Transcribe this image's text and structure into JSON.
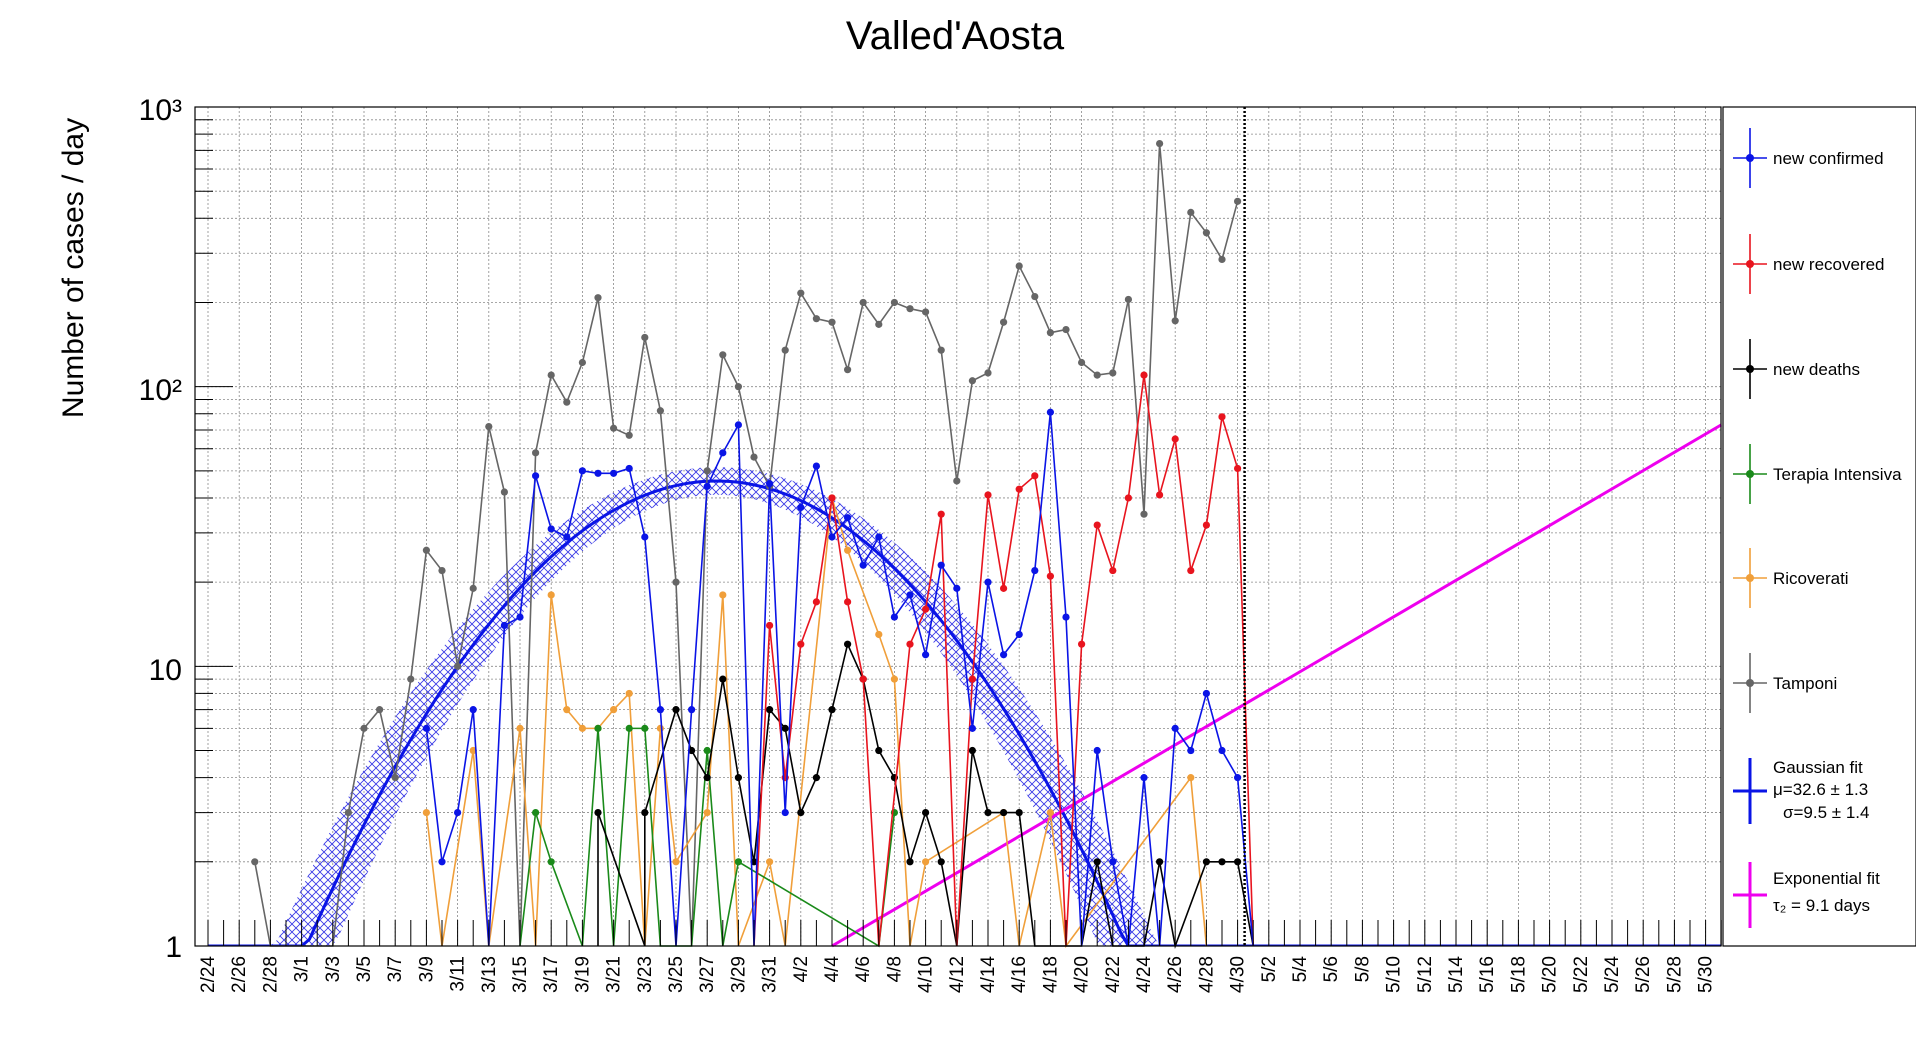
{
  "chart_data": {
    "type": "line",
    "title": "Valled'Aosta",
    "ylabel": "Number of cases / day",
    "xlabel": "",
    "yscale": "log",
    "ylim": [
      1,
      1000
    ],
    "grid": true,
    "legend_position": "right",
    "y_ticks": [
      "1",
      "10",
      "10²",
      "10³"
    ],
    "x_dates": [
      "2/24",
      "2/25",
      "2/26",
      "2/27",
      "2/28",
      "2/29",
      "3/1",
      "3/2",
      "3/3",
      "3/4",
      "3/5",
      "3/6",
      "3/7",
      "3/8",
      "3/9",
      "3/10",
      "3/11",
      "3/12",
      "3/13",
      "3/14",
      "3/15",
      "3/16",
      "3/17",
      "3/18",
      "3/19",
      "3/20",
      "3/21",
      "3/22",
      "3/23",
      "3/24",
      "3/25",
      "3/26",
      "3/27",
      "3/28",
      "3/29",
      "3/30",
      "3/31",
      "4/1",
      "4/2",
      "4/3",
      "4/4",
      "4/5",
      "4/6",
      "4/7",
      "4/8",
      "4/9",
      "4/10",
      "4/11",
      "4/12",
      "4/13",
      "4/14",
      "4/15",
      "4/16",
      "4/17",
      "4/18",
      "4/19",
      "4/20",
      "4/21",
      "4/22",
      "4/23",
      "4/24",
      "4/25",
      "4/26",
      "4/27",
      "4/28",
      "4/29",
      "4/30",
      "5/1",
      "5/2",
      "5/3",
      "5/4",
      "5/5",
      "5/6",
      "5/7",
      "5/8",
      "5/9",
      "5/10",
      "5/11",
      "5/12",
      "5/13",
      "5/14",
      "5/15",
      "5/16",
      "5/17",
      "5/18",
      "5/19",
      "5/20",
      "5/21",
      "5/22",
      "5/23",
      "5/24",
      "5/25",
      "5/26",
      "5/27",
      "5/28",
      "5/29",
      "5/30",
      "5/31"
    ],
    "x_tick_labels": [
      "2/24",
      "2/26",
      "2/28",
      "3/1",
      "3/3",
      "3/5",
      "3/7",
      "3/9",
      "3/11",
      "3/13",
      "3/15",
      "3/17",
      "3/19",
      "3/21",
      "3/23",
      "3/25",
      "3/27",
      "3/29",
      "3/31",
      "4/2",
      "4/4",
      "4/6",
      "4/8",
      "4/10",
      "4/12",
      "4/14",
      "4/16",
      "4/18",
      "4/20",
      "4/22",
      "4/24",
      "4/26",
      "4/28",
      "4/30",
      "5/2",
      "5/4",
      "5/6",
      "5/8",
      "5/10",
      "5/12",
      "5/14",
      "5/16",
      "5/18",
      "5/20",
      "5/22",
      "5/24",
      "5/26",
      "5/28",
      "5/30"
    ],
    "vertical_line_date": "4/30",
    "series": [
      {
        "name": "Tamponi",
        "color": "#666666",
        "points": [
          [
            "2/27",
            2
          ],
          [
            "2/28",
            1
          ],
          [
            "3/3",
            1
          ],
          [
            "3/4",
            3
          ],
          [
            "3/5",
            6
          ],
          [
            "3/6",
            7
          ],
          [
            "3/7",
            4
          ],
          [
            "3/8",
            9
          ],
          [
            "3/9",
            26
          ],
          [
            "3/10",
            22
          ],
          [
            "3/11",
            10
          ],
          [
            "3/12",
            19
          ],
          [
            "3/13",
            72
          ],
          [
            "3/14",
            42
          ],
          [
            "3/15",
            1
          ],
          [
            "3/16",
            58
          ],
          [
            "3/17",
            110
          ],
          [
            "3/18",
            88
          ],
          [
            "3/19",
            122
          ],
          [
            "3/20",
            208
          ],
          [
            "3/21",
            71
          ],
          [
            "3/22",
            67
          ],
          [
            "3/23",
            150
          ],
          [
            "3/24",
            82
          ],
          [
            "3/25",
            20
          ],
          [
            "3/26",
            1
          ],
          [
            "3/27",
            50
          ],
          [
            "3/28",
            130
          ],
          [
            "3/29",
            100
          ],
          [
            "3/30",
            56
          ],
          [
            "3/31",
            44
          ],
          [
            "4/1",
            135
          ],
          [
            "4/2",
            216
          ],
          [
            "4/3",
            175
          ],
          [
            "4/4",
            170
          ],
          [
            "4/5",
            115
          ],
          [
            "4/6",
            200
          ],
          [
            "4/7",
            167
          ],
          [
            "4/8",
            200
          ],
          [
            "4/9",
            190
          ],
          [
            "4/10",
            185
          ],
          [
            "4/11",
            135
          ],
          [
            "4/12",
            46
          ],
          [
            "4/13",
            105
          ],
          [
            "4/14",
            112
          ],
          [
            "4/15",
            170
          ],
          [
            "4/16",
            270
          ],
          [
            "4/17",
            210
          ],
          [
            "4/18",
            156
          ],
          [
            "4/19",
            160
          ],
          [
            "4/20",
            122
          ],
          [
            "4/21",
            110
          ],
          [
            "4/22",
            112
          ],
          [
            "4/23",
            205
          ],
          [
            "4/24",
            35
          ],
          [
            "4/25",
            740
          ],
          [
            "4/26",
            172
          ],
          [
            "4/27",
            420
          ],
          [
            "4/28",
            355
          ],
          [
            "4/29",
            285
          ],
          [
            "4/30",
            460
          ]
        ]
      },
      {
        "name": "Ricoverati",
        "color": "#f09f3a",
        "points": [
          [
            "3/9",
            3
          ],
          [
            "3/10",
            1
          ],
          [
            "3/12",
            5
          ],
          [
            "3/13",
            1
          ],
          [
            "3/15",
            6
          ],
          [
            "3/16",
            1
          ],
          [
            "3/17",
            18
          ],
          [
            "3/18",
            7
          ],
          [
            "3/19",
            6
          ],
          [
            "3/20",
            6
          ],
          [
            "3/21",
            7
          ],
          [
            "3/22",
            8
          ],
          [
            "3/23",
            1
          ],
          [
            "3/24",
            6
          ],
          [
            "3/25",
            2
          ],
          [
            "3/27",
            3
          ],
          [
            "3/28",
            18
          ],
          [
            "3/29",
            1
          ],
          [
            "3/31",
            2
          ],
          [
            "4/1",
            1
          ],
          [
            "4/4",
            40
          ],
          [
            "4/5",
            26
          ],
          [
            "4/7",
            13
          ],
          [
            "4/8",
            9
          ],
          [
            "4/9",
            1
          ],
          [
            "4/10",
            2
          ],
          [
            "4/15",
            3
          ],
          [
            "4/16",
            1
          ],
          [
            "4/18",
            3
          ],
          [
            "4/19",
            1
          ],
          [
            "4/27",
            4
          ],
          [
            "4/28",
            1
          ]
        ]
      },
      {
        "name": "Terapia Intensiva",
        "color": "#1a8a1a",
        "points": [
          [
            "3/15",
            1
          ],
          [
            "3/16",
            3
          ],
          [
            "3/17",
            2
          ],
          [
            "3/19",
            1
          ],
          [
            "3/20",
            6
          ],
          [
            "3/21",
            1
          ],
          [
            "3/22",
            6
          ],
          [
            "3/23",
            6
          ],
          [
            "3/24",
            1
          ],
          [
            "3/26",
            1
          ],
          [
            "3/27",
            5
          ],
          [
            "3/28",
            1
          ],
          [
            "3/29",
            2
          ],
          [
            "4/7",
            1
          ],
          [
            "4/8",
            3
          ]
        ]
      },
      {
        "name": "new deaths",
        "color": "#000000",
        "points": [
          [
            "3/20",
            1
          ],
          [
            "3/20",
            3
          ],
          [
            "3/23",
            1
          ],
          [
            "3/23",
            3
          ],
          [
            "3/25",
            7
          ],
          [
            "3/26",
            5
          ],
          [
            "3/27",
            4
          ],
          [
            "3/28",
            9
          ],
          [
            "3/29",
            4
          ],
          [
            "3/30",
            2
          ],
          [
            "3/31",
            7
          ],
          [
            "4/1",
            6
          ],
          [
            "4/2",
            3
          ],
          [
            "4/3",
            4
          ],
          [
            "4/4",
            7
          ],
          [
            "4/5",
            12
          ],
          [
            "4/6",
            9
          ],
          [
            "4/7",
            5
          ],
          [
            "4/8",
            4
          ],
          [
            "4/9",
            2
          ],
          [
            "4/10",
            3
          ],
          [
            "4/11",
            2
          ],
          [
            "4/12",
            1
          ],
          [
            "4/13",
            5
          ],
          [
            "4/14",
            3
          ],
          [
            "4/15",
            3
          ],
          [
            "4/16",
            3
          ],
          [
            "4/17",
            1
          ],
          [
            "4/20",
            1
          ],
          [
            "4/21",
            2
          ],
          [
            "4/22",
            1
          ],
          [
            "4/24",
            1
          ],
          [
            "4/25",
            2
          ],
          [
            "4/26",
            1
          ],
          [
            "4/28",
            2
          ],
          [
            "4/29",
            2
          ],
          [
            "4/30",
            2
          ],
          [
            "5/1",
            1
          ]
        ]
      },
      {
        "name": "new recovered",
        "color": "#e8141e",
        "points": [
          [
            "3/30",
            1
          ],
          [
            "3/31",
            14
          ],
          [
            "4/1",
            4
          ],
          [
            "4/2",
            12
          ],
          [
            "4/3",
            17
          ],
          [
            "4/4",
            40
          ],
          [
            "4/5",
            17
          ],
          [
            "4/6",
            9
          ],
          [
            "4/7",
            1
          ],
          [
            "4/9",
            12
          ],
          [
            "4/10",
            16
          ],
          [
            "4/11",
            35
          ],
          [
            "4/12",
            1
          ],
          [
            "4/13",
            9
          ],
          [
            "4/14",
            41
          ],
          [
            "4/15",
            19
          ],
          [
            "4/16",
            43
          ],
          [
            "4/17",
            48
          ],
          [
            "4/18",
            21
          ],
          [
            "4/19",
            1
          ],
          [
            "4/20",
            12
          ],
          [
            "4/21",
            32
          ],
          [
            "4/22",
            22
          ],
          [
            "4/23",
            40
          ],
          [
            "4/24",
            110
          ],
          [
            "4/25",
            41
          ],
          [
            "4/26",
            65
          ],
          [
            "4/27",
            22
          ],
          [
            "4/28",
            32
          ],
          [
            "4/29",
            78
          ],
          [
            "4/30",
            51
          ],
          [
            "5/1",
            1
          ]
        ]
      },
      {
        "name": "new confirmed",
        "color": "#0a14e6",
        "points": [
          [
            "3/9",
            6
          ],
          [
            "3/10",
            2
          ],
          [
            "3/11",
            3
          ],
          [
            "3/12",
            7
          ],
          [
            "3/13",
            1
          ],
          [
            "3/14",
            14
          ],
          [
            "3/15",
            15
          ],
          [
            "3/16",
            48
          ],
          [
            "3/17",
            31
          ],
          [
            "3/18",
            29
          ],
          [
            "3/19",
            50
          ],
          [
            "3/20",
            49
          ],
          [
            "3/21",
            49
          ],
          [
            "3/22",
            51
          ],
          [
            "3/23",
            29
          ],
          [
            "3/24",
            7
          ],
          [
            "3/25",
            1
          ],
          [
            "3/26",
            7
          ],
          [
            "3/27",
            44
          ],
          [
            "3/28",
            58
          ],
          [
            "3/29",
            73
          ],
          [
            "3/30",
            1
          ],
          [
            "3/31",
            45
          ],
          [
            "4/1",
            3
          ],
          [
            "4/2",
            37
          ],
          [
            "4/3",
            52
          ],
          [
            "4/4",
            29
          ],
          [
            "4/5",
            34
          ],
          [
            "4/6",
            23
          ],
          [
            "4/7",
            29
          ],
          [
            "4/8",
            15
          ],
          [
            "4/9",
            18
          ],
          [
            "4/10",
            11
          ],
          [
            "4/11",
            23
          ],
          [
            "4/12",
            19
          ],
          [
            "4/13",
            6
          ],
          [
            "4/14",
            20
          ],
          [
            "4/15",
            11
          ],
          [
            "4/16",
            13
          ],
          [
            "4/17",
            22
          ],
          [
            "4/18",
            81
          ],
          [
            "4/19",
            15
          ],
          [
            "4/20",
            1
          ],
          [
            "4/21",
            5
          ],
          [
            "4/22",
            2
          ],
          [
            "4/23",
            1
          ],
          [
            "4/24",
            4
          ],
          [
            "4/25",
            1
          ],
          [
            "4/26",
            6
          ],
          [
            "4/27",
            5
          ],
          [
            "4/28",
            8
          ],
          [
            "4/29",
            5
          ],
          [
            "4/30",
            4
          ],
          [
            "5/1",
            1
          ]
        ]
      }
    ],
    "gaussian_fit": {
      "name": "Gaussian fit",
      "color": "#0a14e6",
      "mu": 32.6,
      "sigma": 9.5,
      "amplitude": 46,
      "label_line1": "Gaussian fit",
      "label_line2": "μ=32.6 ± 1.3",
      "label_line3": "σ=9.5 ± 1.4"
    },
    "exponential_fit": {
      "name": "Exponential fit",
      "color": "#ee00ee",
      "start_date": "4/4",
      "end_date": "5/31",
      "start_value": 1,
      "end_value": 73,
      "label_line1": "Exponential fit",
      "label_line2": "τ₂ = 9.1 days"
    },
    "legend": [
      {
        "label": "new confirmed",
        "color": "#0a14e6"
      },
      {
        "label": "new recovered",
        "color": "#e8141e"
      },
      {
        "label": "new deaths",
        "color": "#000000"
      },
      {
        "label": "Terapia Intensiva",
        "color": "#1a8a1a"
      },
      {
        "label": "Ricoverati",
        "color": "#f09f3a"
      },
      {
        "label": "Tamponi",
        "color": "#666666"
      }
    ]
  }
}
